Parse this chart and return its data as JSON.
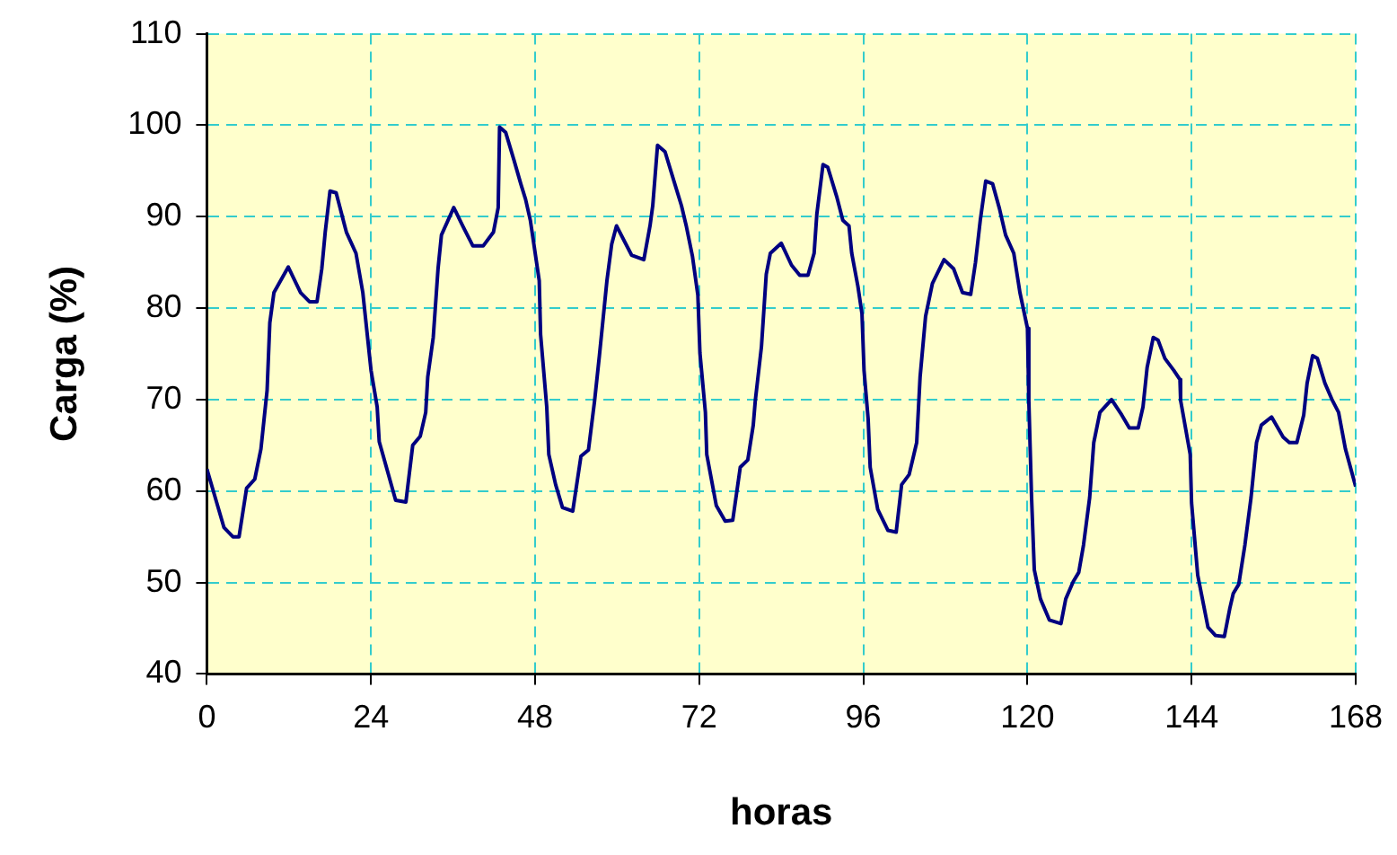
{
  "chart_data": {
    "type": "line",
    "xlabel": "horas",
    "ylabel": "Carga (%)",
    "xlim": [
      0,
      168
    ],
    "xticks": [
      0,
      24,
      48,
      72,
      96,
      120,
      144,
      168
    ],
    "ylim": [
      40,
      110
    ],
    "yticks": [
      40,
      50,
      60,
      70,
      80,
      90,
      100,
      110
    ],
    "grid": true,
    "legend": false,
    "marker": "none",
    "line_style": "solid",
    "series": [
      {
        "color": "#000080",
        "x": [
          0,
          2.5,
          3.8,
          4.7,
          5.8,
          7,
          7.9,
          8.8,
          9.2,
          9.8,
          11.9,
          13.7,
          15,
          16.1,
          16.8,
          17.3,
          18,
          18.9,
          20.4,
          21.8,
          22.8,
          24,
          24.9,
          25.2,
          27.6,
          29.1,
          30.1,
          31.2,
          32,
          32.3,
          33.1,
          33.8,
          34.3,
          36.1,
          37.4,
          38.9,
          40.4,
          41.9,
          42.6,
          42.8,
          43.7,
          44.9,
          45.9,
          46.6,
          47.3,
          48.6,
          48.8,
          49.7,
          50,
          51,
          52,
          53.5,
          54.7,
          55.8,
          56.7,
          57.4,
          58.5,
          59.2,
          59.9,
          62.1,
          63.9,
          64.8,
          65.2,
          65.9,
          67,
          68.3,
          69.4,
          70.1,
          71,
          71.8,
          72.1,
          72.9,
          73.1,
          74.5,
          75.8,
          76.9,
          78,
          79.1,
          79.9,
          80.2,
          81.1,
          81.8,
          82.4,
          84,
          85.5,
          86.7,
          87.9,
          88.8,
          89.2,
          90.1,
          90.8,
          92.1,
          93,
          93.9,
          94.3,
          95.2,
          95.8,
          96.1,
          96.7,
          97,
          98.1,
          99.6,
          100.8,
          101.6,
          102.7,
          103.8,
          104.3,
          105.1,
          106.1,
          107.8,
          109.2,
          110.5,
          111.7,
          112.4,
          113.1,
          113.9,
          114.9,
          115.9,
          116.8,
          118,
          118.9,
          120,
          120.2,
          120.6,
          121,
          121.9,
          123.2,
          124.9,
          125.6,
          126.7,
          127.5,
          128.2,
          129.1,
          129.7,
          130.6,
          132.3,
          133.8,
          134.9,
          136.2,
          136.9,
          137.5,
          138.4,
          139.1,
          140.1,
          141.4,
          142.3,
          142.4,
          143.8,
          144,
          144.9,
          146.4,
          147.5,
          148.8,
          149.6,
          150.1,
          150.9,
          151.8,
          152.7,
          153.5,
          154.2,
          155.7,
          157.4,
          158.3,
          159.4,
          160.4,
          160.9,
          161.7,
          162.4,
          163.5,
          164.6,
          165.5,
          166.5,
          168
        ],
        "values": [
          62.4,
          56,
          55,
          55,
          60.3,
          61.3,
          64.6,
          71,
          78.4,
          81.7,
          84.5,
          81.7,
          80.7,
          80.7,
          84.3,
          88.3,
          92.8,
          92.6,
          88.3,
          86,
          81.7,
          73.2,
          69.2,
          65.4,
          59,
          58.8,
          65,
          66,
          68.6,
          72.5,
          76.8,
          84.3,
          88,
          91,
          89,
          86.8,
          86.8,
          88.3,
          91,
          99.8,
          99.2,
          96.2,
          93.6,
          91.9,
          89.6,
          83,
          77.1,
          69.2,
          64,
          60.7,
          58.2,
          57.8,
          63.8,
          64.5,
          69.9,
          74.8,
          83,
          87,
          89,
          85.8,
          85.3,
          89,
          91.2,
          97.8,
          97.1,
          93.9,
          91.2,
          89,
          85.7,
          81.4,
          75.1,
          68.6,
          64,
          58.4,
          56.7,
          56.8,
          62.6,
          63.4,
          67.2,
          69.9,
          75.8,
          83.7,
          86,
          87.1,
          84.7,
          83.6,
          83.6,
          86,
          90.3,
          95.7,
          95.4,
          92.2,
          89.6,
          89,
          86,
          82.4,
          79.4,
          73.2,
          67.9,
          62.6,
          58,
          55.7,
          55.5,
          60.7,
          61.8,
          65.3,
          72.5,
          79.1,
          82.7,
          85.3,
          84.3,
          81.7,
          81.5,
          85,
          89.6,
          93.9,
          93.6,
          90.9,
          88,
          86,
          81.7,
          77.8,
          69.9,
          59.3,
          51.4,
          48.2,
          45.9,
          45.5,
          48.2,
          50.1,
          51.1,
          54.1,
          59.3,
          65.3,
          68.6,
          70,
          68.3,
          66.9,
          66.9,
          69.2,
          73.5,
          76.8,
          76.5,
          74.5,
          73.2,
          72.2,
          69.9,
          64,
          58.7,
          50.8,
          45.1,
          44.2,
          44.1,
          47.2,
          48.8,
          49.8,
          54.1,
          59.3,
          65.3,
          67.2,
          68.1,
          65.9,
          65.3,
          65.3,
          68.3,
          71.8,
          74.8,
          74.5,
          71.8,
          69.9,
          68.6,
          64.6,
          60.5
        ]
      }
    ]
  }
}
